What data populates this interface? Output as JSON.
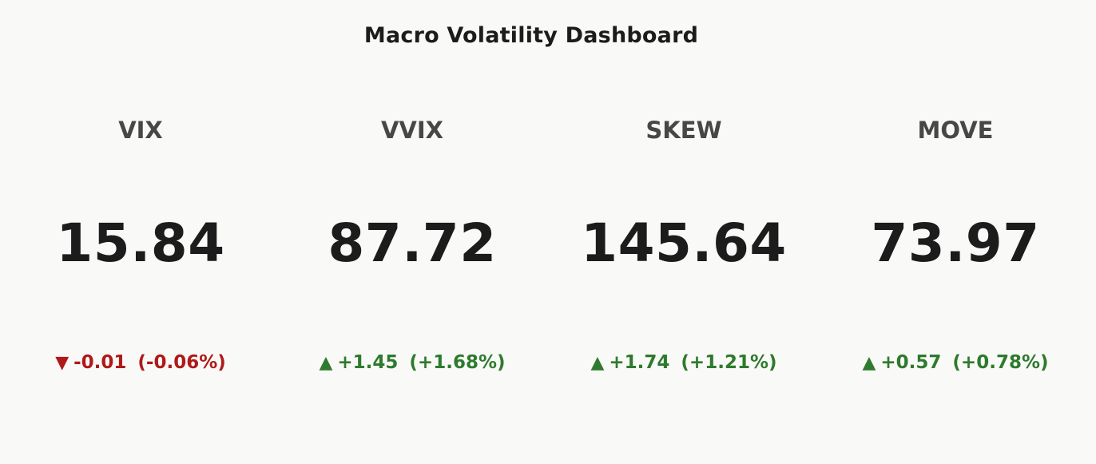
{
  "title": "Macro Volatility Dashboard",
  "colors": {
    "background": "#f9f9f7",
    "text_primary": "#1c1c1c",
    "text_secondary": "#474747",
    "negative": "#b01919",
    "positive": "#2e7a2e"
  },
  "metrics": [
    {
      "ticker": "VIX",
      "value": "15.84",
      "arrow": "▼",
      "change": "-0.01",
      "pct": "(-0.06%)",
      "direction": "down",
      "arrow_icon": "triangle-down-icon"
    },
    {
      "ticker": "VVIX",
      "value": "87.72",
      "arrow": "▲",
      "change": "+1.45",
      "pct": "(+1.68%)",
      "direction": "up",
      "arrow_icon": "triangle-up-icon"
    },
    {
      "ticker": "SKEW",
      "value": "145.64",
      "arrow": "▲",
      "change": "+1.74",
      "pct": "(+1.21%)",
      "direction": "up",
      "arrow_icon": "triangle-up-icon"
    },
    {
      "ticker": "MOVE",
      "value": "73.97",
      "arrow": "▲",
      "change": "+0.57",
      "pct": "(+0.78%)",
      "direction": "up",
      "arrow_icon": "triangle-up-icon"
    }
  ]
}
